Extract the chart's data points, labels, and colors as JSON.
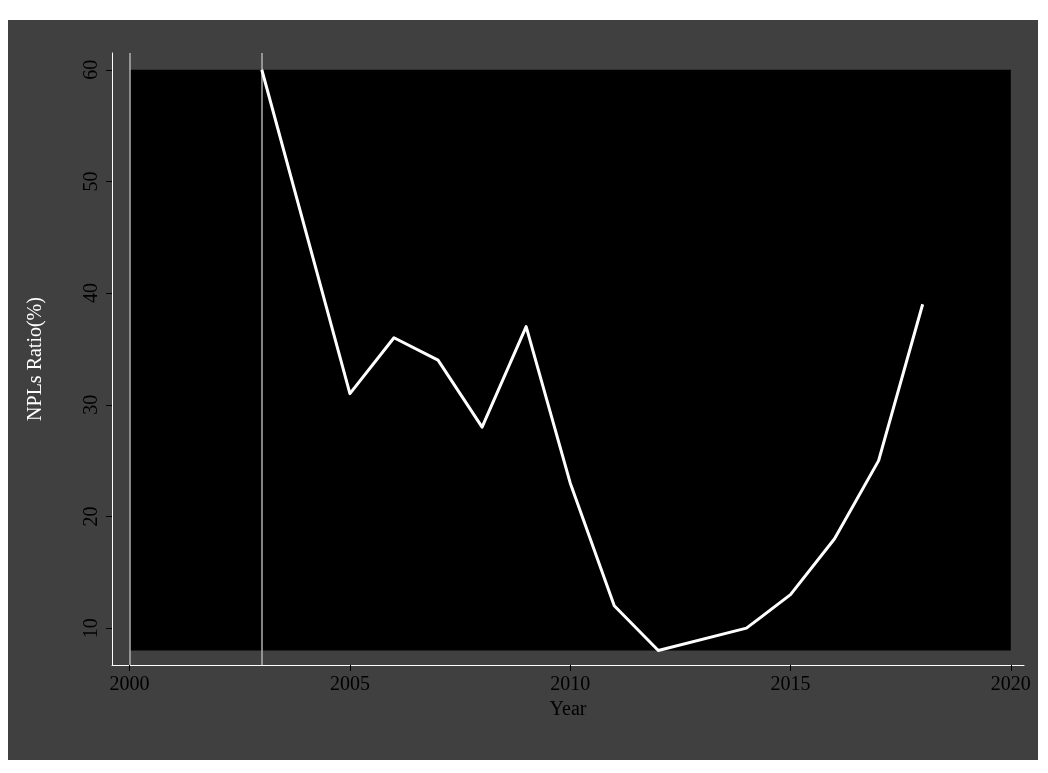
{
  "chart_data": {
    "type": "line",
    "xlabel": "Year",
    "ylabel": "NPLs Ratio(%)",
    "x": [
      2003,
      2005,
      2006,
      2007,
      2008,
      2009,
      2010,
      2011,
      2012,
      2014,
      2015,
      2016,
      2017,
      2018
    ],
    "series": [
      {
        "color": "#ffffff",
        "values": [
          60,
          31,
          36,
          34,
          28,
          37,
          23,
          12,
          8,
          10,
          13,
          18,
          25,
          39
        ]
      }
    ],
    "xlim": [
      1999.6,
      2020.3
    ],
    "xticks": [
      2000,
      2005,
      2010,
      2015,
      2020
    ],
    "ylim": [
      6.7,
      61.5
    ],
    "yticks": [
      10,
      20,
      30,
      40,
      50,
      60
    ],
    "bands": [
      {
        "axis": "y",
        "from": 8,
        "to": 60,
        "color": "#000000"
      }
    ],
    "ref_lines": [
      {
        "axis": "x",
        "value": 2000,
        "color": "#b0b0b0"
      },
      {
        "axis": "x",
        "value": 2003,
        "color": "#b0b0b0"
      }
    ],
    "grid": false,
    "marker": "none",
    "line_style": "solid"
  }
}
